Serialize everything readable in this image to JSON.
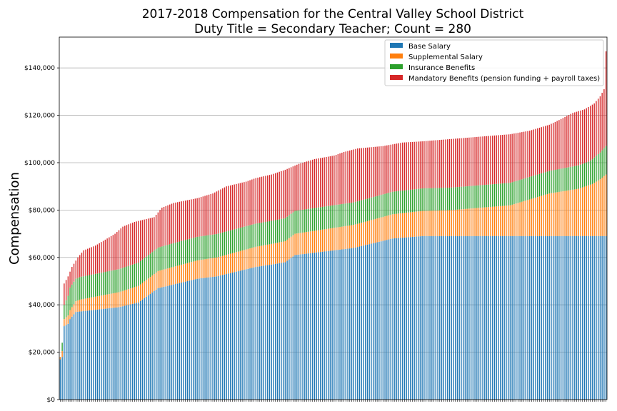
{
  "chart_data": {
    "type": "bar",
    "stacked": true,
    "title_lines": [
      "2017-2018 Compensation for the Central Valley School District",
      "Duty Title = Secondary Teacher; Count = 280"
    ],
    "xlabel": "",
    "ylabel": "Compensation",
    "ylim": [
      0,
      153000
    ],
    "yticks": [
      {
        "value": 0,
        "label": "$0"
      },
      {
        "value": 20000,
        "label": "$20,000"
      },
      {
        "value": 40000,
        "label": "$40,000"
      },
      {
        "value": 60000,
        "label": "$60,000"
      },
      {
        "value": 80000,
        "label": "$80,000"
      },
      {
        "value": 100000,
        "label": "$100,000"
      },
      {
        "value": 120000,
        "label": "$120,000"
      },
      {
        "value": 140000,
        "label": "$140,000"
      }
    ],
    "grid": "horizontal",
    "legend_position": "top-right",
    "bar_count": 280,
    "series": [
      {
        "name": "Base Salary",
        "color": "#1f77b4"
      },
      {
        "name": "Supplemental Salary",
        "color": "#ff7f0e"
      },
      {
        "name": "Insurance Benefits",
        "color": "#2ca02c"
      },
      {
        "name": "Mandatory Benefits (pension funding + payroll taxes)",
        "color": "#d62728"
      }
    ],
    "total_anchors": [
      [
        0,
        18000
      ],
      [
        1,
        24000
      ],
      [
        2,
        49000
      ],
      [
        4,
        52000
      ],
      [
        6,
        56000
      ],
      [
        9,
        60000
      ],
      [
        12,
        63000
      ],
      [
        18,
        65000
      ],
      [
        22,
        67000
      ],
      [
        28,
        70000
      ],
      [
        32,
        73000
      ],
      [
        38,
        75000
      ],
      [
        48,
        77000
      ],
      [
        52,
        81000
      ],
      [
        58,
        83000
      ],
      [
        70,
        85000
      ],
      [
        78,
        87000
      ],
      [
        85,
        90000
      ],
      [
        95,
        92000
      ],
      [
        100,
        93500
      ],
      [
        108,
        95000
      ],
      [
        115,
        97000
      ],
      [
        122,
        99500
      ],
      [
        130,
        101500
      ],
      [
        140,
        103000
      ],
      [
        145,
        104500
      ],
      [
        152,
        106000
      ],
      [
        165,
        107000
      ],
      [
        175,
        108500
      ],
      [
        185,
        109000
      ],
      [
        200,
        110000
      ],
      [
        215,
        111000
      ],
      [
        230,
        112000
      ],
      [
        240,
        113500
      ],
      [
        250,
        116000
      ],
      [
        255,
        118000
      ],
      [
        262,
        121000
      ],
      [
        268,
        122500
      ],
      [
        273,
        125000
      ],
      [
        276,
        128000
      ],
      [
        278,
        131000
      ],
      [
        279,
        147000
      ]
    ],
    "base_anchors": [
      [
        0,
        17000
      ],
      [
        1,
        18000
      ],
      [
        2,
        31000
      ],
      [
        4,
        32000
      ],
      [
        5,
        34000
      ],
      [
        8,
        37000
      ],
      [
        30,
        39000
      ],
      [
        40,
        41000
      ],
      [
        45,
        44000
      ],
      [
        50,
        47000
      ],
      [
        60,
        49000
      ],
      [
        70,
        51000
      ],
      [
        80,
        52000
      ],
      [
        90,
        54000
      ],
      [
        100,
        56000
      ],
      [
        108,
        57000
      ],
      [
        115,
        58000
      ],
      [
        120,
        61000
      ],
      [
        130,
        62000
      ],
      [
        140,
        63000
      ],
      [
        150,
        64000
      ],
      [
        160,
        66000
      ],
      [
        170,
        68000
      ],
      [
        185,
        69000
      ],
      [
        279,
        69000
      ]
    ],
    "supplemental_anchors": [
      [
        0,
        2000
      ],
      [
        2,
        3000
      ],
      [
        10,
        5000
      ],
      [
        40,
        7000
      ],
      [
        80,
        8000
      ],
      [
        120,
        9000
      ],
      [
        160,
        10000
      ],
      [
        200,
        11000
      ],
      [
        230,
        13000
      ],
      [
        250,
        18000
      ],
      [
        265,
        20000
      ],
      [
        272,
        22000
      ],
      [
        276,
        24000
      ],
      [
        279,
        26000
      ]
    ],
    "insurance_anchors": [
      [
        0,
        1000
      ],
      [
        2,
        6000
      ],
      [
        5,
        9500
      ],
      [
        60,
        10000
      ],
      [
        150,
        9500
      ],
      [
        200,
        9500
      ],
      [
        250,
        9500
      ],
      [
        270,
        10000
      ],
      [
        279,
        12000
      ]
    ]
  }
}
